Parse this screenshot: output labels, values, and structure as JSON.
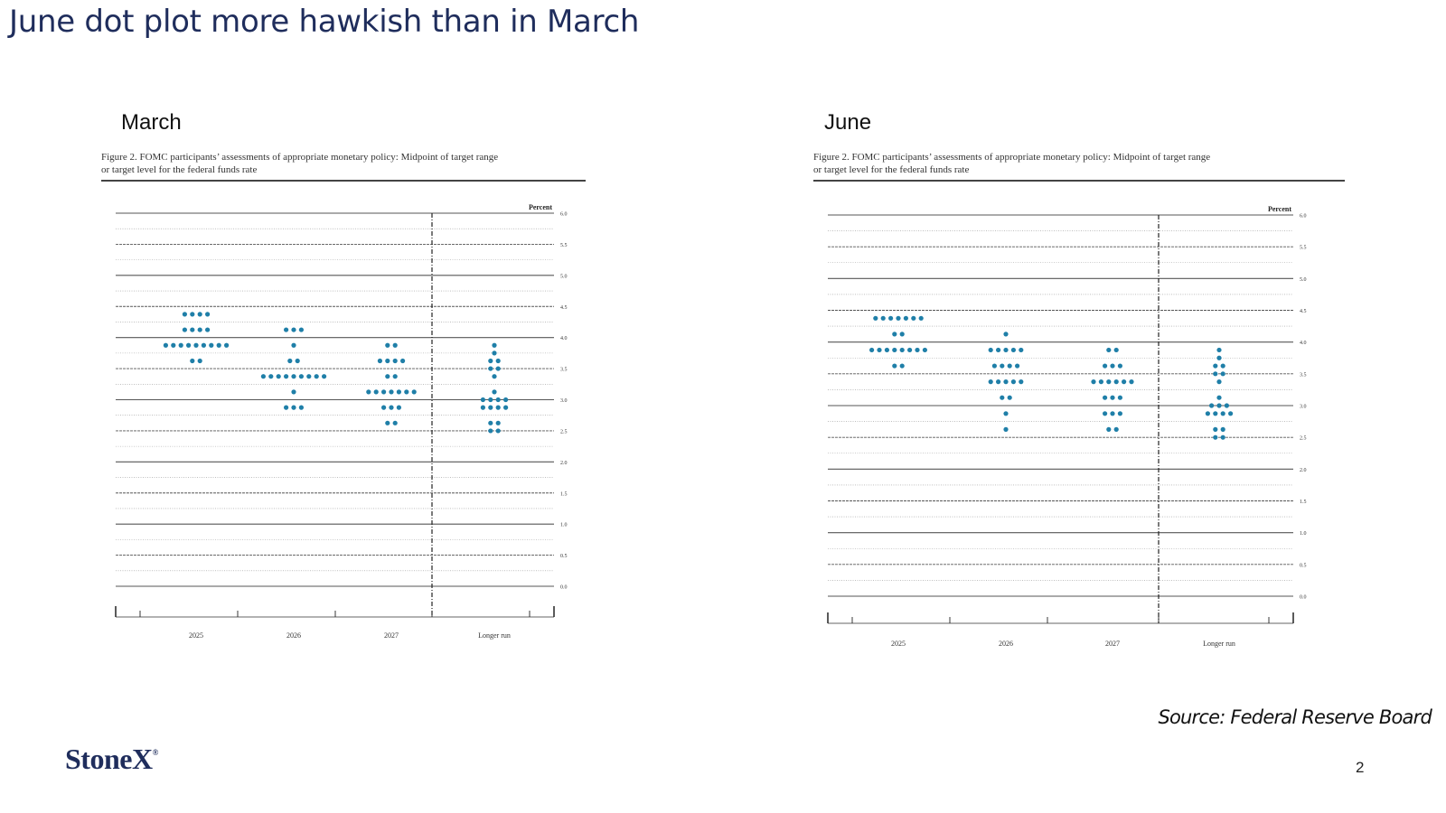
{
  "slide": {
    "title": "June dot plot more hawkish than in March",
    "source": "Source: Federal Reserve Board",
    "logo": "StoneX",
    "logo_mark": "®",
    "page_number": "2"
  },
  "colors": {
    "title": "#1f2d5c",
    "dot": "#1f7fa8",
    "line": "#444444"
  },
  "chart_data": [
    {
      "type": "scatter",
      "panel_label": "March",
      "caption": "Figure 2.  FOMC participants’ assessments of appropriate monetary policy:  Midpoint of target range\nor target level for the federal funds rate",
      "ylabel": "Percent",
      "ylim": [
        0,
        6
      ],
      "yticks": [
        "0.0",
        "0.5",
        "1.0",
        "1.5",
        "2.0",
        "2.5",
        "3.0",
        "3.5",
        "4.0",
        "4.5",
        "5.0",
        "5.5",
        "6.0"
      ],
      "categories": [
        "2025",
        "2026",
        "2027",
        "Longer run"
      ],
      "grid": true,
      "dots": [
        {
          "category": "2025",
          "counts": [
            {
              "y": 4.375,
              "n": 4
            },
            {
              "y": 4.125,
              "n": 4
            },
            {
              "y": 3.875,
              "n": 9
            },
            {
              "y": 3.625,
              "n": 2
            }
          ]
        },
        {
          "category": "2026",
          "counts": [
            {
              "y": 4.125,
              "n": 3
            },
            {
              "y": 3.875,
              "n": 1
            },
            {
              "y": 3.625,
              "n": 2
            },
            {
              "y": 3.375,
              "n": 9
            },
            {
              "y": 3.125,
              "n": 1
            },
            {
              "y": 2.875,
              "n": 3
            }
          ]
        },
        {
          "category": "2027",
          "counts": [
            {
              "y": 3.875,
              "n": 2
            },
            {
              "y": 3.625,
              "n": 4
            },
            {
              "y": 3.375,
              "n": 2
            },
            {
              "y": 3.125,
              "n": 7
            },
            {
              "y": 2.875,
              "n": 3
            },
            {
              "y": 2.625,
              "n": 2
            }
          ]
        },
        {
          "category": "Longer run",
          "counts": [
            {
              "y": 3.875,
              "n": 1
            },
            {
              "y": 3.75,
              "n": 1
            },
            {
              "y": 3.625,
              "n": 2
            },
            {
              "y": 3.5,
              "n": 2
            },
            {
              "y": 3.375,
              "n": 1
            },
            {
              "y": 3.125,
              "n": 1
            },
            {
              "y": 3.0,
              "n": 4
            },
            {
              "y": 2.875,
              "n": 4
            },
            {
              "y": 2.625,
              "n": 2
            },
            {
              "y": 2.5,
              "n": 2
            }
          ]
        }
      ]
    },
    {
      "type": "scatter",
      "panel_label": "June",
      "caption": "Figure 2.  FOMC participants’ assessments of appropriate monetary policy:  Midpoint of target range\nor target level for the federal funds rate",
      "ylabel": "Percent",
      "ylim": [
        0,
        6
      ],
      "yticks": [
        "0.0",
        "0.5",
        "1.0",
        "1.5",
        "2.0",
        "2.5",
        "3.0",
        "3.5",
        "4.0",
        "4.5",
        "5.0",
        "5.5",
        "6.0"
      ],
      "categories": [
        "2025",
        "2026",
        "2027",
        "Longer run"
      ],
      "grid": true,
      "dots": [
        {
          "category": "2025",
          "counts": [
            {
              "y": 4.375,
              "n": 7
            },
            {
              "y": 4.125,
              "n": 2
            },
            {
              "y": 3.875,
              "n": 8
            },
            {
              "y": 3.625,
              "n": 2
            }
          ]
        },
        {
          "category": "2026",
          "counts": [
            {
              "y": 4.125,
              "n": 1
            },
            {
              "y": 3.875,
              "n": 5
            },
            {
              "y": 3.625,
              "n": 4
            },
            {
              "y": 3.375,
              "n": 5
            },
            {
              "y": 3.125,
              "n": 2
            },
            {
              "y": 2.875,
              "n": 1
            },
            {
              "y": 2.625,
              "n": 1
            }
          ]
        },
        {
          "category": "2027",
          "counts": [
            {
              "y": 3.875,
              "n": 2
            },
            {
              "y": 3.625,
              "n": 3
            },
            {
              "y": 3.375,
              "n": 6
            },
            {
              "y": 3.125,
              "n": 3
            },
            {
              "y": 2.875,
              "n": 3
            },
            {
              "y": 2.625,
              "n": 2
            }
          ]
        },
        {
          "category": "Longer run",
          "counts": [
            {
              "y": 3.875,
              "n": 1
            },
            {
              "y": 3.75,
              "n": 1
            },
            {
              "y": 3.625,
              "n": 2
            },
            {
              "y": 3.5,
              "n": 2
            },
            {
              "y": 3.375,
              "n": 1
            },
            {
              "y": 3.125,
              "n": 1
            },
            {
              "y": 3.0,
              "n": 3
            },
            {
              "y": 2.875,
              "n": 4
            },
            {
              "y": 2.625,
              "n": 2
            },
            {
              "y": 2.5,
              "n": 2
            }
          ]
        }
      ]
    }
  ]
}
